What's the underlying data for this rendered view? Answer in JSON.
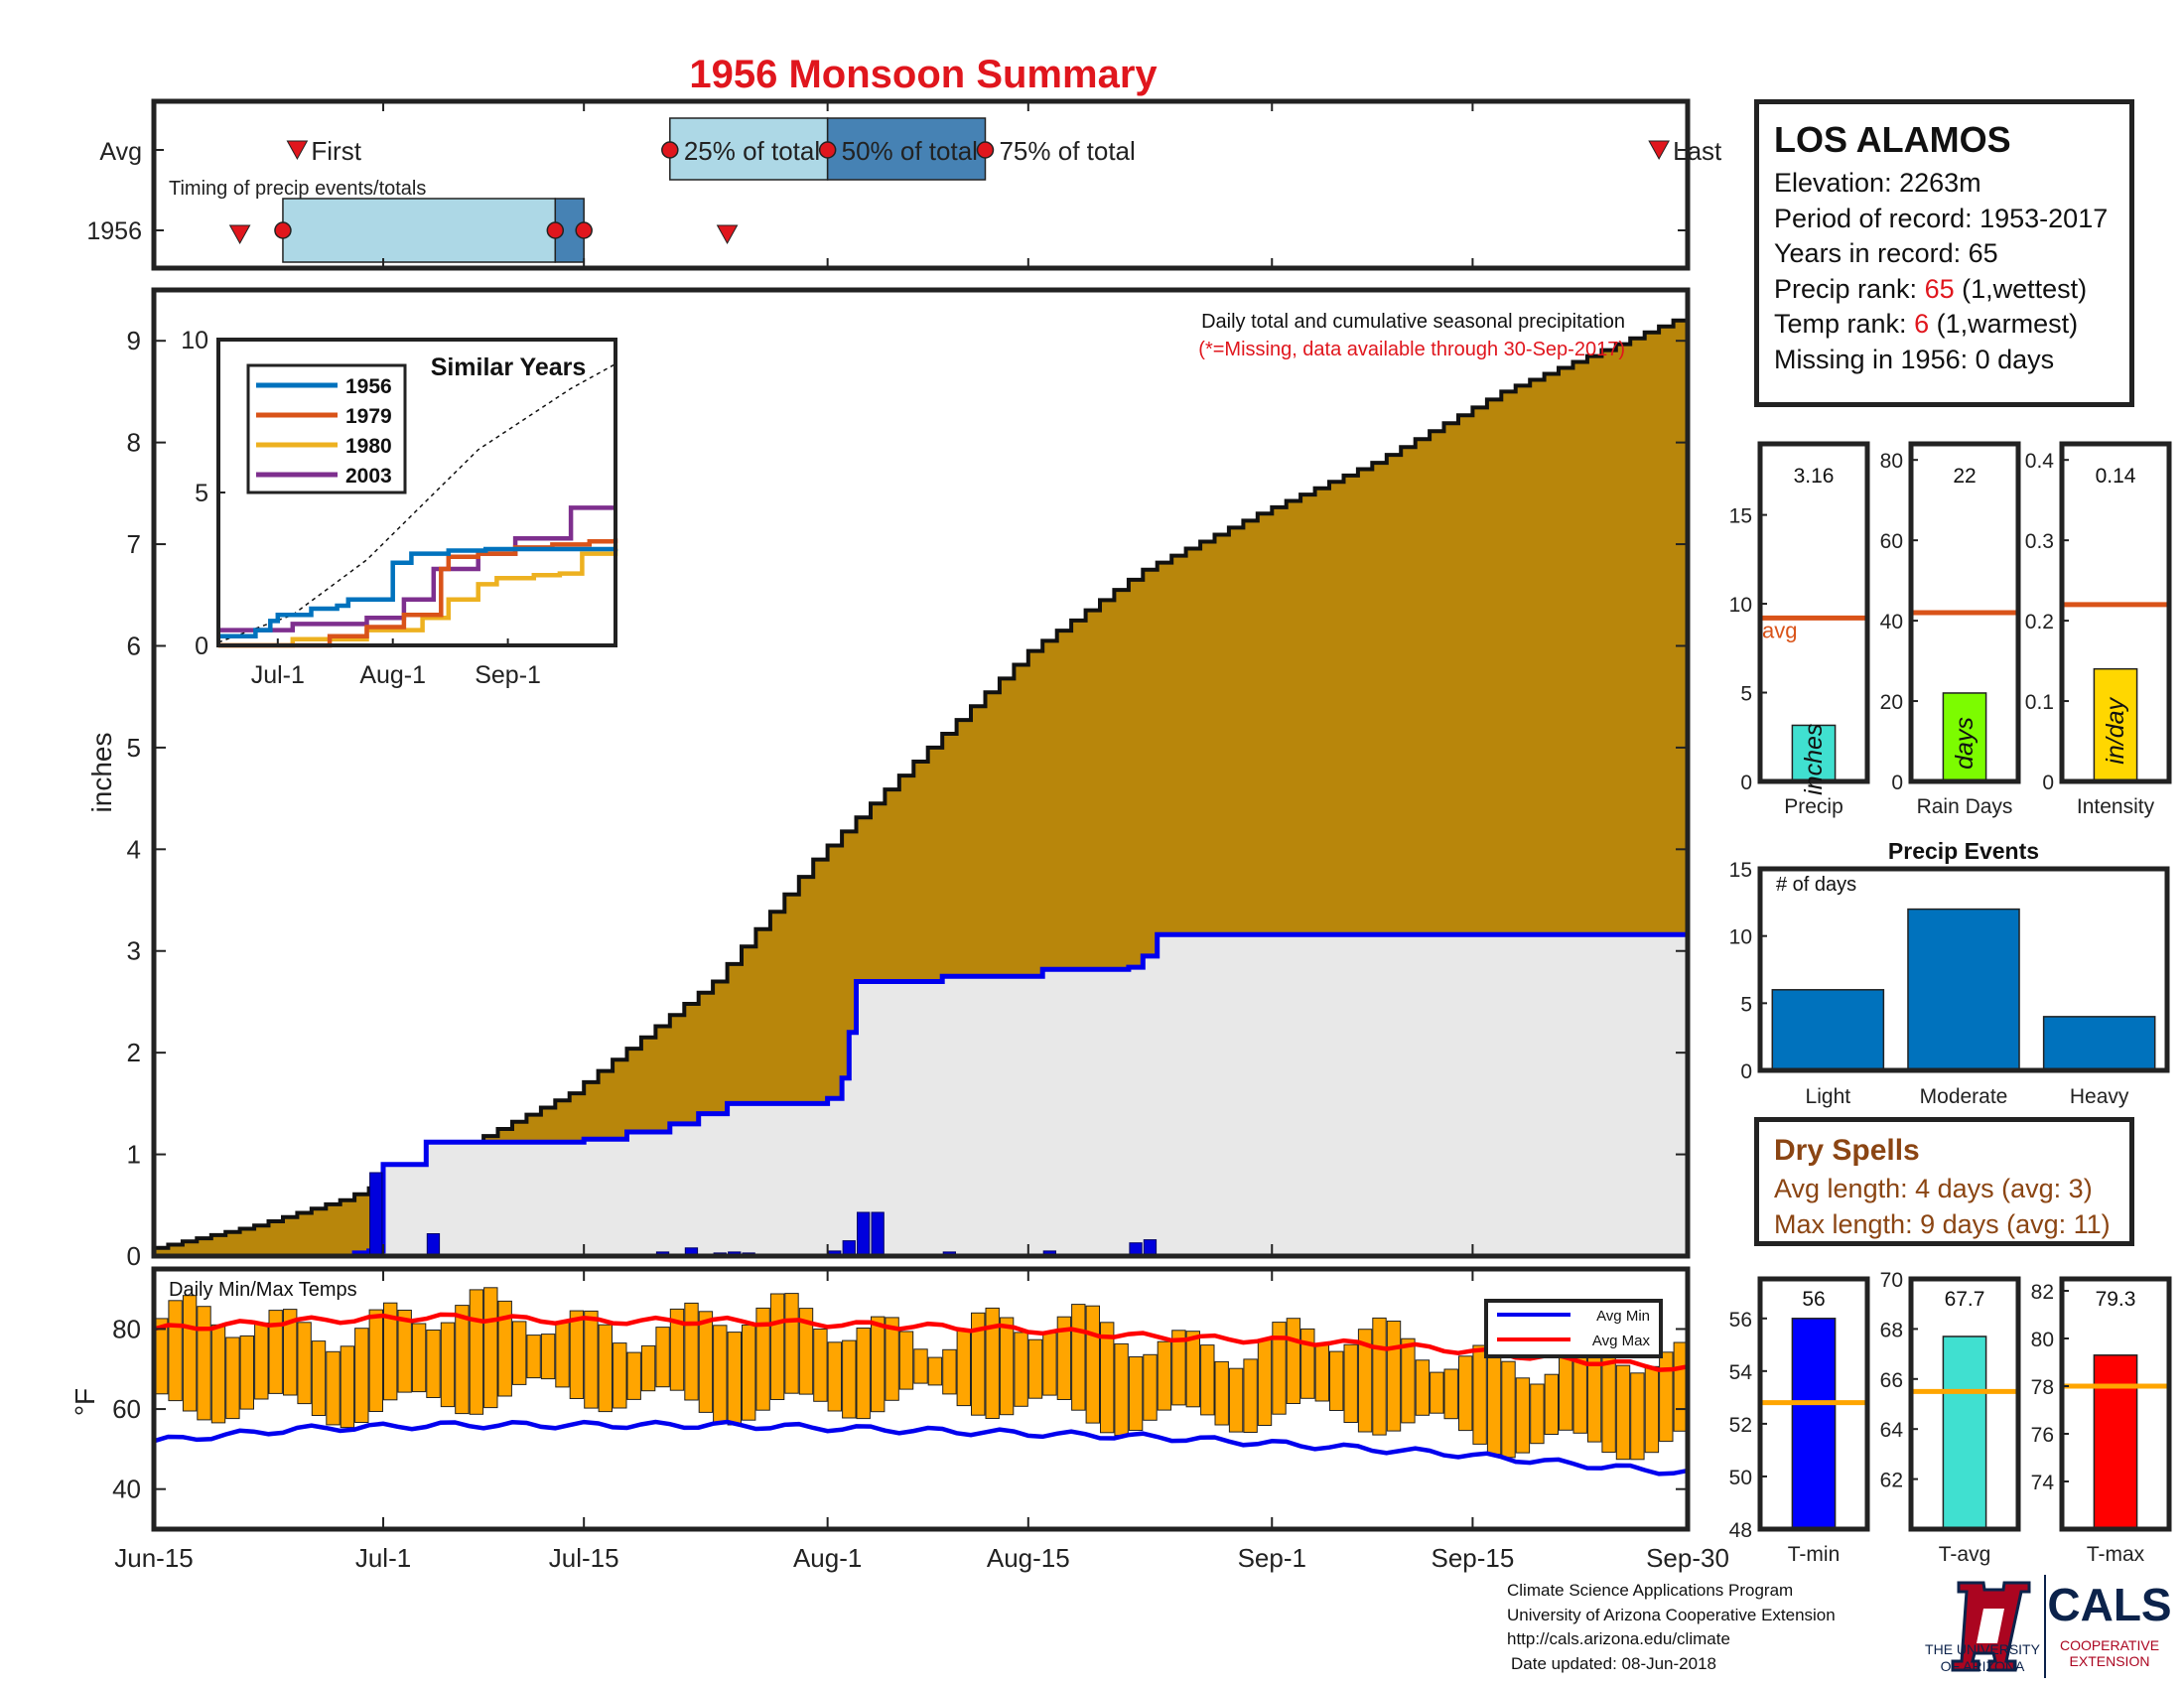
{
  "title": "1956 Monsoon Summary",
  "timing": {
    "row_labels": [
      "Avg",
      "1956"
    ],
    "subtitle": "Timing of precip events/totals",
    "avg": {
      "first": 10,
      "p25": 36,
      "p50": 47,
      "p75": 58,
      "last": 105,
      "labels": {
        "first": "First",
        "p25": "25% of total",
        "p50": "50% of total",
        "p75": "75% of total",
        "last": "Last"
      }
    },
    "y1956": {
      "first": 6,
      "p25": 9,
      "p50": 28,
      "p75": 30,
      "last": 40
    }
  },
  "x_axis": {
    "ticks": [
      0,
      16,
      30,
      47,
      61,
      78,
      92,
      107
    ],
    "labels": [
      "Jun-15",
      "Jul-1",
      "Jul-15",
      "Aug-1",
      "Aug-15",
      "Sep-1",
      "Sep-15",
      "Sep-30"
    ],
    "range": [
      0,
      107
    ]
  },
  "chart_data": [
    {
      "type": "area",
      "name": "cumulative-precip",
      "note_line1": "Daily total and cumulative seasonal precipitation",
      "note_line2": "(*=Missing, data available through 30-Sep-2017)",
      "ylabel": "inches",
      "ylim": [
        0,
        9.5
      ],
      "yticks": [
        0,
        1,
        2,
        3,
        4,
        5,
        6,
        7,
        8,
        9
      ],
      "avg_cumulative": {
        "x": [
          0,
          8,
          14,
          20,
          30,
          40,
          47,
          55,
          62,
          70,
          78,
          86,
          95,
          107
        ],
        "y": [
          0.05,
          0.3,
          0.55,
          0.9,
          1.6,
          2.7,
          3.9,
          5.0,
          5.95,
          6.75,
          7.3,
          7.8,
          8.5,
          9.2
        ]
      },
      "cumulative_1956": {
        "x": [
          0,
          14,
          15,
          16,
          18,
          19,
          20,
          23,
          30,
          33,
          36,
          38,
          40,
          44,
          47,
          48,
          48.5,
          49,
          50,
          55,
          62,
          68,
          69,
          70,
          107
        ],
        "y": [
          0,
          0.03,
          0.05,
          0.9,
          0.9,
          1.12,
          1.12,
          1.12,
          1.15,
          1.22,
          1.3,
          1.4,
          1.5,
          1.5,
          1.55,
          1.75,
          2.2,
          2.7,
          2.7,
          2.75,
          2.82,
          2.84,
          2.95,
          3.16,
          3.16
        ]
      },
      "daily_bars": {
        "x": [
          15,
          19,
          35,
          37,
          39,
          40,
          41,
          47,
          48,
          49,
          50,
          55,
          62,
          68,
          69
        ],
        "y": [
          0.82,
          0.22,
          0.04,
          0.08,
          0.03,
          0.04,
          0.03,
          0.05,
          0.15,
          0.43,
          0.43,
          0.04,
          0.05,
          0.13,
          0.16
        ]
      }
    },
    {
      "type": "line",
      "name": "similar-years",
      "title": "Similar Years",
      "ylim": [
        0,
        10
      ],
      "yticks": [
        0,
        5,
        10
      ],
      "xticks": [
        16,
        47,
        78
      ],
      "xlabels": [
        "Jul-1",
        "Aug-1",
        "Sep-1"
      ],
      "series": [
        {
          "name": "1956",
          "color": "#0072bd",
          "x": [
            0,
            10,
            14,
            16,
            25,
            32,
            35,
            47,
            52,
            62,
            72,
            107
          ],
          "y": [
            0.3,
            0.5,
            0.8,
            1.0,
            1.2,
            1.3,
            1.5,
            2.7,
            3.0,
            3.1,
            3.15,
            3.16
          ]
        },
        {
          "name": "1979",
          "color": "#d95319",
          "x": [
            0,
            10,
            30,
            40,
            50,
            60,
            62,
            70,
            80,
            90,
            100,
            107
          ],
          "y": [
            0,
            0,
            0.3,
            0.6,
            1.0,
            2.5,
            2.9,
            3.0,
            3.2,
            3.3,
            3.4,
            3.5
          ]
        },
        {
          "name": "1980",
          "color": "#edb120",
          "x": [
            0,
            20,
            40,
            55,
            62,
            70,
            75,
            85,
            92,
            98,
            107
          ],
          "y": [
            0,
            0.2,
            0.5,
            0.9,
            1.5,
            2.0,
            2.2,
            2.3,
            2.35,
            3.0,
            3.3
          ]
        },
        {
          "name": "2003",
          "color": "#7e2f8e",
          "x": [
            0,
            20,
            40,
            50,
            58,
            70,
            80,
            95,
            107
          ],
          "y": [
            0.5,
            0.7,
            0.9,
            1.5,
            2.5,
            3.0,
            3.5,
            4.5,
            4.5
          ]
        }
      ],
      "avg_dashed": {
        "x": [
          0,
          20,
          40,
          55,
          70,
          85,
          95,
          107
        ],
        "y": [
          0.1,
          1.0,
          2.8,
          4.6,
          6.4,
          7.6,
          8.4,
          9.2
        ]
      }
    },
    {
      "type": "bar",
      "name": "daily-temps",
      "title": "Daily Min/Max Temps",
      "ylabel": "°F",
      "ylim": [
        30,
        95
      ],
      "yticks": [
        40,
        60,
        80
      ],
      "legend": [
        "Avg Min",
        "Avg Max"
      ],
      "avg_max": {
        "x": [
          0,
          10,
          20,
          30,
          40,
          50,
          60,
          70,
          80,
          90,
          100,
          107
        ],
        "y": [
          80,
          82,
          83,
          82,
          82,
          81,
          80,
          78,
          77,
          75,
          72,
          70
        ]
      },
      "avg_min": {
        "x": [
          0,
          10,
          20,
          30,
          40,
          50,
          60,
          70,
          80,
          90,
          100,
          107
        ],
        "y": [
          52,
          55,
          56,
          56,
          56,
          55,
          54,
          53,
          51,
          49,
          46,
          44
        ]
      }
    },
    {
      "type": "bar",
      "name": "precip-total",
      "xlabel": "Precip",
      "unit": "inches",
      "value": 3.16,
      "value_label": "3.16",
      "avg": 9.2,
      "avg_label": "avg",
      "ylim": [
        0,
        19
      ],
      "yticks": [
        0,
        5,
        10,
        15
      ],
      "color": "#40e0d0"
    },
    {
      "type": "bar",
      "name": "rain-days",
      "xlabel": "Rain Days",
      "unit": "days",
      "value": 22,
      "value_label": "22",
      "avg": 42,
      "ylim": [
        0,
        84
      ],
      "yticks": [
        0,
        20,
        40,
        60,
        80
      ],
      "color": "#7cfc00"
    },
    {
      "type": "bar",
      "name": "intensity",
      "xlabel": "Intensity",
      "unit": "in/day",
      "value": 0.14,
      "value_label": "0.14",
      "avg": 0.22,
      "ylim": [
        0,
        0.42
      ],
      "yticks": [
        0,
        0.1,
        0.2,
        0.3,
        0.4
      ],
      "ytick_labels": [
        "0",
        "0.1",
        "0.2",
        "0.3",
        "0.4"
      ],
      "color": "#ffd700"
    },
    {
      "type": "bar",
      "name": "precip-events",
      "title": "Precip Events",
      "ylabel_note": "# of days",
      "categories": [
        "Light",
        "Moderate",
        "Heavy"
      ],
      "values": [
        6,
        12,
        4
      ],
      "ylim": [
        0,
        15
      ],
      "yticks": [
        0,
        5,
        10,
        15
      ],
      "color": "#0072bd"
    },
    {
      "type": "bar",
      "name": "t-min",
      "xlabel": "T-min",
      "value": 56,
      "value_label": "56",
      "avg": 52.8,
      "ylim": [
        48,
        57.5
      ],
      "yticks": [
        48,
        50,
        52,
        54,
        56
      ],
      "color": "#0000ff"
    },
    {
      "type": "bar",
      "name": "t-avg",
      "xlabel": "T-avg",
      "value": 67.7,
      "value_label": "67.7",
      "avg": 65.5,
      "ylim": [
        60,
        70
      ],
      "yticks": [
        62,
        64,
        66,
        68,
        70
      ],
      "color": "#40e0d0"
    },
    {
      "type": "bar",
      "name": "t-max",
      "xlabel": "T-max",
      "value": 79.3,
      "value_label": "79.3",
      "avg": 78,
      "ylim": [
        72,
        82.5
      ],
      "yticks": [
        74,
        76,
        78,
        80,
        82
      ],
      "color": "#ff0000"
    }
  ],
  "station": {
    "name": "LOS ALAMOS",
    "elevation": "Elevation: 2263m",
    "period": "Period of record: 1953-2017",
    "years": "Years in record: 65",
    "precip_rank_label": "Precip rank: ",
    "precip_rank": "65",
    "precip_rank_note": " (1,wettest)",
    "temp_rank_label": "Temp rank: ",
    "temp_rank": "6",
    "temp_rank_note": " (1,warmest)",
    "missing": "Missing in 1956: 0 days"
  },
  "dry_spells": {
    "title": "Dry Spells",
    "avg": "Avg length: 4 days (avg: 3)",
    "max": "Max length: 9 days (avg: 11)"
  },
  "footer": {
    "line1": "Climate Science Applications Program",
    "line2": "University of Arizona Cooperative Extension",
    "line3": "http://cals.arizona.edu/climate",
    "line4": "Date updated: 08-Jun-2018"
  },
  "logos": {
    "ua_line1": "THE UNIVERSITY",
    "ua_line2": "OF ARIZONA",
    "cals": "CALS",
    "cals_line1": "COOPERATIVE",
    "cals_line2": "EXTENSION"
  },
  "colors": {
    "cumulative_avg": "#b8860b",
    "cumulative_1956": "#e8e8e8",
    "line_1956": "#0000ee",
    "timing_light": "#add8e6",
    "timing_dark": "#4682b4",
    "temp_bar": "#ffa500",
    "avg_line": "#d95319",
    "red_title": "#e0161d"
  }
}
